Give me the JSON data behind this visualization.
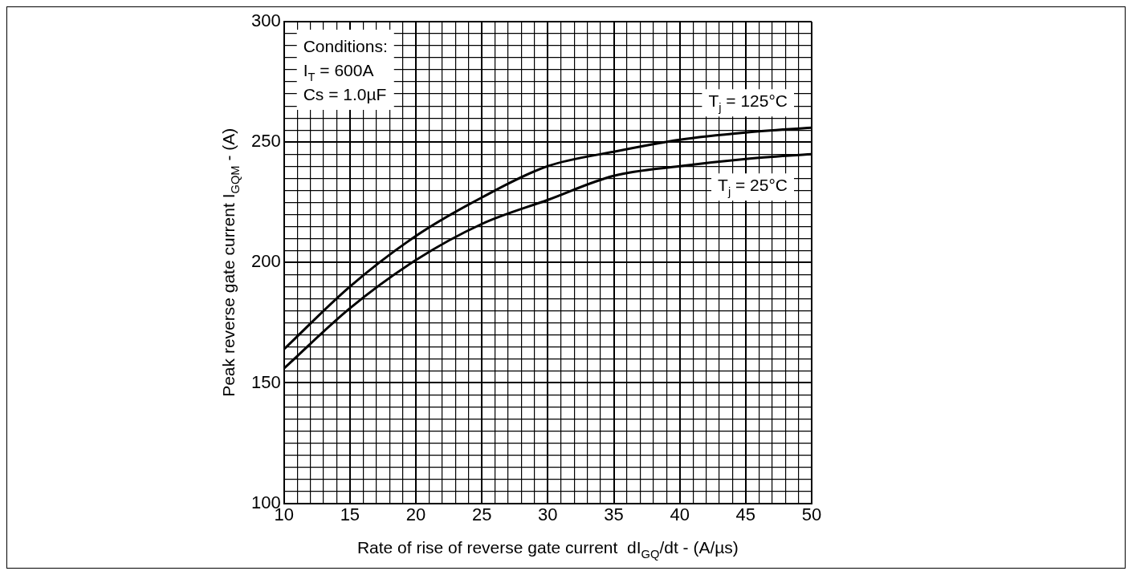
{
  "chart_data": {
    "type": "line",
    "xlabel": "Rate of rise of reverse gate current  dI$_{GQ}$/dt - (A/µs)",
    "ylabel": "Peak reverse gate current I$_{GQM}$ - (A)",
    "annotations": [
      "Conditions:",
      "I$_{T}$ = 600A",
      "Cs = 1.0µF"
    ],
    "x": [
      10,
      15,
      20,
      25,
      30,
      35,
      40,
      45,
      50
    ],
    "series": [
      {
        "name": "T$_{j}$ = 125°C",
        "color": "#000000",
        "values": [
          164,
          190,
          211,
          227,
          240,
          246,
          251,
          254,
          256
        ]
      },
      {
        "name": "T$_{j}$ = 25°C",
        "color": "#000000",
        "values": [
          156,
          181,
          201,
          216,
          226,
          236,
          240,
          243,
          245
        ]
      }
    ],
    "xlim": [
      10,
      50
    ],
    "xticks": [
      10,
      {
        "value": 11,
        "label": null
      },
      {
        "value": 12,
        "label": null
      },
      {
        "value": 13,
        "label": null
      },
      {
        "value": 14,
        "label": null
      },
      15,
      {
        "value": 16,
        "label": null
      },
      {
        "value": 17,
        "label": null
      },
      {
        "value": 18,
        "label": null
      },
      {
        "value": 19,
        "label": null
      },
      20,
      {
        "value": 21,
        "label": null
      },
      {
        "value": 22,
        "label": null
      },
      {
        "value": 23,
        "label": null
      },
      {
        "value": 24,
        "label": null
      },
      25,
      {
        "value": 26,
        "label": null
      },
      {
        "value": 27,
        "label": null
      },
      {
        "value": 28,
        "label": null
      },
      {
        "value": 29,
        "label": null
      },
      30,
      {
        "value": 31,
        "label": null
      },
      {
        "value": 32,
        "label": null
      },
      {
        "value": 33,
        "label": null
      },
      {
        "value": 34,
        "label": null
      },
      35,
      {
        "value": 36,
        "label": null
      },
      {
        "value": 37,
        "label": null
      },
      {
        "value": 38,
        "label": null
      },
      {
        "value": 39,
        "label": null
      },
      40,
      {
        "value": 41,
        "label": null
      },
      {
        "value": 42,
        "label": null
      },
      {
        "value": 43,
        "label": null
      },
      {
        "value": 44,
        "label": null
      },
      45,
      {
        "value": 46,
        "label": null
      },
      {
        "value": 47,
        "label": null
      },
      {
        "value": 48,
        "label": null
      },
      {
        "value": 49,
        "label": null
      },
      50
    ],
    "ylim": [
      100,
      300
    ],
    "yticks": [
      100,
      {
        "value": 105,
        "label": null
      },
      {
        "value": 110,
        "label": null
      },
      {
        "value": 115,
        "label": null
      },
      {
        "value": 120,
        "label": null
      },
      {
        "value": 125,
        "label": null
      },
      {
        "value": 130,
        "label": null
      },
      {
        "value": 135,
        "label": null
      },
      {
        "value": 140,
        "label": null
      },
      {
        "value": 145,
        "label": null
      },
      150,
      {
        "value": 155,
        "label": null
      },
      {
        "value": 160,
        "label": null
      },
      {
        "value": 165,
        "label": null
      },
      {
        "value": 170,
        "label": null
      },
      {
        "value": 175,
        "label": null
      },
      {
        "value": 180,
        "label": null
      },
      {
        "value": 185,
        "label": null
      },
      {
        "value": 190,
        "label": null
      },
      {
        "value": 195,
        "label": null
      },
      200,
      {
        "value": 205,
        "label": null
      },
      {
        "value": 210,
        "label": null
      },
      {
        "value": 215,
        "label": null
      },
      {
        "value": 220,
        "label": null
      },
      {
        "value": 225,
        "label": null
      },
      {
        "value": 230,
        "label": null
      },
      {
        "value": 235,
        "label": null
      },
      {
        "value": 240,
        "label": null
      },
      {
        "value": 245,
        "label": null
      },
      250,
      {
        "value": 255,
        "label": null
      },
      {
        "value": 260,
        "label": null
      },
      {
        "value": 265,
        "label": null
      },
      {
        "value": 270,
        "label": null
      },
      {
        "value": 275,
        "label": null
      },
      {
        "value": 280,
        "label": null
      },
      {
        "value": 285,
        "label": null
      },
      {
        "value": 290,
        "label": null
      },
      {
        "value": 295,
        "label": null
      },
      300
    ],
    "grid": true,
    "legend": false,
    "marker": "none",
    "line_style": "solid"
  }
}
